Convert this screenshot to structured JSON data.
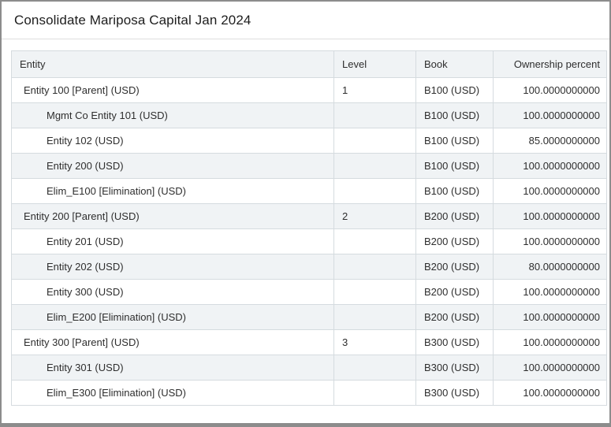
{
  "title": "Consolidate Mariposa Capital Jan 2024",
  "table": {
    "columns": [
      "Entity",
      "Level",
      "Book",
      "Ownership percent"
    ],
    "rows": [
      {
        "entity": "Entity 100 [Parent] (USD)",
        "level": "1",
        "book": "B100 (USD)",
        "ownership": "100.0000000000",
        "indent": 0
      },
      {
        "entity": "Mgmt Co Entity 101 (USD)",
        "level": "",
        "book": "B100 (USD)",
        "ownership": "100.0000000000",
        "indent": 1
      },
      {
        "entity": "Entity 102 (USD)",
        "level": "",
        "book": "B100 (USD)",
        "ownership": "85.0000000000",
        "indent": 1
      },
      {
        "entity": "Entity 200 (USD)",
        "level": "",
        "book": "B100 (USD)",
        "ownership": "100.0000000000",
        "indent": 1
      },
      {
        "entity": "Elim_E100 [Elimination] (USD)",
        "level": "",
        "book": "B100 (USD)",
        "ownership": "100.0000000000",
        "indent": 1
      },
      {
        "entity": "Entity 200 [Parent] (USD)",
        "level": "2",
        "book": "B200 (USD)",
        "ownership": "100.0000000000",
        "indent": 0
      },
      {
        "entity": "Entity 201 (USD)",
        "level": "",
        "book": "B200 (USD)",
        "ownership": "100.0000000000",
        "indent": 1
      },
      {
        "entity": "Entity 202 (USD)",
        "level": "",
        "book": "B200 (USD)",
        "ownership": "80.0000000000",
        "indent": 1
      },
      {
        "entity": "Entity 300 (USD)",
        "level": "",
        "book": "B200 (USD)",
        "ownership": "100.0000000000",
        "indent": 1
      },
      {
        "entity": "Elim_E200 [Elimination] (USD)",
        "level": "",
        "book": "B200 (USD)",
        "ownership": "100.0000000000",
        "indent": 1
      },
      {
        "entity": "Entity 300 [Parent] (USD)",
        "level": "3",
        "book": "B300 (USD)",
        "ownership": "100.0000000000",
        "indent": 0
      },
      {
        "entity": "Entity 301 (USD)",
        "level": "",
        "book": "B300 (USD)",
        "ownership": "100.0000000000",
        "indent": 1
      },
      {
        "entity": "Elim_E300 [Elimination] (USD)",
        "level": "",
        "book": "B300 (USD)",
        "ownership": "100.0000000000",
        "indent": 1
      }
    ]
  },
  "colors": {
    "frame_border": "#8c8c8c",
    "table_border": "#d5dbdf",
    "stripe_bg": "#f0f3f5",
    "text": "#2e2e2e",
    "title_divider": "#dedede"
  }
}
